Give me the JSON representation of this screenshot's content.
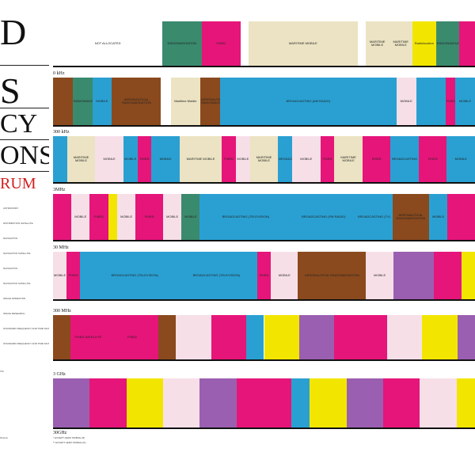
{
  "title": {
    "lines": [
      "D",
      "S",
      "CY",
      "ONS"
    ],
    "subtitle": "RUM"
  },
  "legend": [
    {
      "label": "ASTRONOMY",
      "color": "#ffffff"
    },
    {
      "label": "DISTRIBUTION SATELLITE",
      "color": "#ffffff"
    },
    {
      "label": "NAVIGATION",
      "color": "#ffffff"
    },
    {
      "label": "NAVIGATION SATELLITE",
      "color": "#ffffff"
    },
    {
      "label": "NAVIGATION",
      "color": "#ffffff"
    },
    {
      "label": "NAVIGATION SATELLITE",
      "color": "#ffffff"
    },
    {
      "label": "SPACE OPERATION",
      "color": "#ffffff"
    },
    {
      "label": "SPACE RESEARCH",
      "color": "#ffffff"
    },
    {
      "label": "STANDARD FREQUENCY AND TIME SIGNAL",
      "color": "#ffffff"
    },
    {
      "label": "STANDARD FREQUENCY AND TIME SIGNAL SATELLITE",
      "color": "#ffffff"
    }
  ],
  "legend_extra": [
    "ITE",
    "ification"
  ],
  "footnotes": [
    "* EXCEPT AERO MOBILE (R)",
    "** EXCEPT AERO MOBILE (R)"
  ],
  "chart_data": {
    "type": "table",
    "title": "",
    "rows": [
      {
        "start_label": "",
        "segments": [
          {
            "label": "NOT ALLOCATED",
            "color": "#ffffff",
            "w": 14
          },
          {
            "label": "RADIONAVIGATION",
            "color": "#3a8a6e",
            "w": 5
          },
          {
            "label": "FIXED",
            "color": "#e6157a",
            "w": 5
          },
          {
            "label": "",
            "color": "#ffffff",
            "w": 1
          },
          {
            "label": "MARITIME MOBILE",
            "color": "#ebe3c3",
            "w": 14
          },
          {
            "label": "",
            "color": "#ffffff",
            "w": 1
          },
          {
            "label": "MARITIME MOBILE",
            "color": "#ebe3c3",
            "w": 3
          },
          {
            "label": "MARITIME MOBILE",
            "color": "#ebe3c3",
            "w": 3
          },
          {
            "label": "Radiolocation",
            "color": "#f2e600",
            "w": 3
          },
          {
            "label": "RADIONAVIGATION",
            "color": "#3a8a6e",
            "w": 3
          },
          {
            "label": "",
            "color": "#e6157a",
            "w": 2
          }
        ]
      },
      {
        "start_label": "0 kHz",
        "segments": [
          {
            "label": "",
            "color": "#8a4a1e",
            "w": 2
          },
          {
            "label": "RADIONAVIGATION",
            "color": "#3a8a6e",
            "w": 2
          },
          {
            "label": "MOBILE",
            "color": "#2aa0d2",
            "w": 2
          },
          {
            "label": "AERONAUTICAL RADIONAVIGATION",
            "color": "#8a4a1e",
            "w": 5
          },
          {
            "label": "",
            "color": "#ffffff",
            "w": 1
          },
          {
            "label": "Maritime Mobile",
            "color": "#ebe3c3",
            "w": 3
          },
          {
            "label": "AERONAUTICAL RADIONAVIGATION",
            "color": "#8a4a1e",
            "w": 2
          },
          {
            "label": "BROADCASTING (AM RADIO)",
            "color": "#2aa0d2",
            "w": 18
          },
          {
            "label": "MOBILE",
            "color": "#f7dfe8",
            "w": 2
          },
          {
            "label": "",
            "color": "#2aa0d2",
            "w": 3
          },
          {
            "label": "FIXED",
            "color": "#e6157a",
            "w": 1
          },
          {
            "label": "MOBILE",
            "color": "#2aa0d2",
            "w": 2
          }
        ]
      },
      {
        "start_label": "300 kHz",
        "segments": [
          {
            "label": "",
            "color": "#2aa0d2",
            "w": 1
          },
          {
            "label": "MARITIME MOBILE",
            "color": "#ebe3c3",
            "w": 2
          },
          {
            "label": "MOBILE",
            "color": "#f7dfe8",
            "w": 2
          },
          {
            "label": "MOBILE",
            "color": "#2aa0d2",
            "w": 1
          },
          {
            "label": "FIXED",
            "color": "#e6157a",
            "w": 1
          },
          {
            "label": "MOBILE",
            "color": "#2aa0d2",
            "w": 2
          },
          {
            "label": "MARITIME MOBILE",
            "color": "#ebe3c3",
            "w": 3
          },
          {
            "label": "FIXED",
            "color": "#e6157a",
            "w": 1
          },
          {
            "label": "MOBILE",
            "color": "#f7dfe8",
            "w": 1
          },
          {
            "label": "MARITIME MOBILE",
            "color": "#ebe3c3",
            "w": 2
          },
          {
            "label": "BROADCASTING",
            "color": "#2aa0d2",
            "w": 1
          },
          {
            "label": "MOBILE",
            "color": "#f7dfe8",
            "w": 2
          },
          {
            "label": "FIXED",
            "color": "#e6157a",
            "w": 1
          },
          {
            "label": "MARITIME MOBILE",
            "color": "#ebe3c3",
            "w": 2
          },
          {
            "label": "FIXED",
            "color": "#e6157a",
            "w": 2
          },
          {
            "label": "BROADCASTING",
            "color": "#2aa0d2",
            "w": 2
          },
          {
            "label": "FIXED",
            "color": "#e6157a",
            "w": 2
          },
          {
            "label": "MOBILE",
            "color": "#2aa0d2",
            "w": 2
          }
        ]
      },
      {
        "start_label": "3MHz",
        "segments": [
          {
            "label": "",
            "color": "#e6157a",
            "w": 2
          },
          {
            "label": "MOBILE",
            "color": "#f7dfe8",
            "w": 2
          },
          {
            "label": "FIXED",
            "color": "#e6157a",
            "w": 2
          },
          {
            "label": "",
            "color": "#f2e600",
            "w": 1
          },
          {
            "label": "MOBILE",
            "color": "#f7dfe8",
            "w": 2
          },
          {
            "label": "FIXED",
            "color": "#e6157a",
            "w": 3
          },
          {
            "label": "MOBILE",
            "color": "#f7dfe8",
            "w": 2
          },
          {
            "label": "MOBILE",
            "color": "#3a8a6e",
            "w": 2
          },
          {
            "label": "BROADCASTING (TELEVISION)",
            "color": "#2aa0d2",
            "w": 10
          },
          {
            "label": "BROADCASTING (FM RADIO)",
            "color": "#2aa0d2",
            "w": 7
          },
          {
            "label": "BROADCASTING (TV)",
            "color": "#2aa0d2",
            "w": 4
          },
          {
            "label": "AERONAUTICAL RADIONAVIGATION",
            "color": "#8a4a1e",
            "w": 4
          },
          {
            "label": "MOBILE",
            "color": "#2aa0d2",
            "w": 2
          },
          {
            "label": "",
            "color": "#e6157a",
            "w": 3
          }
        ]
      },
      {
        "start_label": "30 MHz",
        "segments": [
          {
            "label": "MOBILE",
            "color": "#f7dfe8",
            "w": 1
          },
          {
            "label": "FIXED",
            "color": "#e6157a",
            "w": 1
          },
          {
            "label": "",
            "color": "#2aa0d2",
            "w": 1
          },
          {
            "label": "BROADCASTING (TELEVISION)",
            "color": "#2aa0d2",
            "w": 6
          },
          {
            "label": "BROADCASTING (TELEVISION)",
            "color": "#2aa0d2",
            "w": 6
          },
          {
            "label": "FIXED",
            "color": "#e6157a",
            "w": 1
          },
          {
            "label": "MOBILE",
            "color": "#f7dfe8",
            "w": 2
          },
          {
            "label": "AERONAUTICAL RADIONAVIGATION",
            "color": "#8a4a1e",
            "w": 5
          },
          {
            "label": "MOBILE",
            "color": "#f7dfe8",
            "w": 2
          },
          {
            "label": "",
            "color": "#9a5fb0",
            "w": 3
          },
          {
            "label": "",
            "color": "#e6157a",
            "w": 2
          },
          {
            "label": "",
            "color": "#f2e600",
            "w": 1
          }
        ]
      },
      {
        "start_label": "300 MHz",
        "segments": [
          {
            "label": "",
            "color": "#8a4a1e",
            "w": 1
          },
          {
            "label": "FIXED SATELLITE",
            "color": "#e6157a",
            "w": 2
          },
          {
            "label": "FIXED",
            "color": "#e6157a",
            "w": 3
          },
          {
            "label": "",
            "color": "#8a4a1e",
            "w": 1
          },
          {
            "label": "",
            "color": "#f7dfe8",
            "w": 2
          },
          {
            "label": "",
            "color": "#e6157a",
            "w": 2
          },
          {
            "label": "",
            "color": "#2aa0d2",
            "w": 1
          },
          {
            "label": "",
            "color": "#f2e600",
            "w": 2
          },
          {
            "label": "",
            "color": "#9a5fb0",
            "w": 2
          },
          {
            "label": "",
            "color": "#e6157a",
            "w": 3
          },
          {
            "label": "",
            "color": "#f7dfe8",
            "w": 2
          },
          {
            "label": "",
            "color": "#f2e600",
            "w": 2
          },
          {
            "label": "",
            "color": "#9a5fb0",
            "w": 1
          }
        ]
      },
      {
        "start_label": "3 GHz",
        "segments": [
          {
            "label": "",
            "color": "#9a5fb0",
            "w": 2
          },
          {
            "label": "",
            "color": "#e6157a",
            "w": 2
          },
          {
            "label": "",
            "color": "#f2e600",
            "w": 2
          },
          {
            "label": "",
            "color": "#f7dfe8",
            "w": 2
          },
          {
            "label": "",
            "color": "#9a5fb0",
            "w": 2
          },
          {
            "label": "",
            "color": "#e6157a",
            "w": 3
          },
          {
            "label": "",
            "color": "#2aa0d2",
            "w": 1
          },
          {
            "label": "",
            "color": "#f2e600",
            "w": 2
          },
          {
            "label": "",
            "color": "#9a5fb0",
            "w": 2
          },
          {
            "label": "",
            "color": "#e6157a",
            "w": 2
          },
          {
            "label": "",
            "color": "#f7dfe8",
            "w": 2
          },
          {
            "label": "",
            "color": "#f2e600",
            "w": 1
          }
        ]
      }
    ],
    "end_label": "30GHz"
  }
}
